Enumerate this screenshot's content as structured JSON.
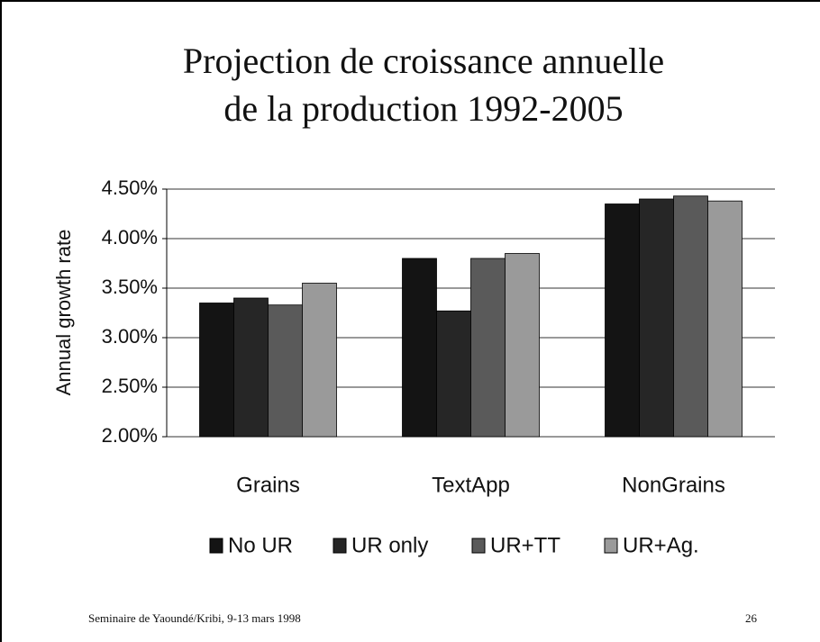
{
  "chart_data": {
    "type": "bar",
    "title": [
      "Projection de croissance annuelle",
      "de la production 1992-2005"
    ],
    "ylabel": "Annual growth rate",
    "categories": [
      "Grains",
      "TextApp",
      "NonGrains"
    ],
    "series": [
      {
        "name": "No UR",
        "color": "#141414",
        "values": [
          3.35,
          3.8,
          4.35
        ]
      },
      {
        "name": "UR only",
        "color": "#262626",
        "values": [
          3.4,
          3.27,
          4.4
        ]
      },
      {
        "name": "UR+TT",
        "color": "#5a5a5a",
        "values": [
          3.33,
          3.8,
          4.43
        ]
      },
      {
        "name": "UR+Ag.",
        "color": "#9a9a9a",
        "values": [
          3.55,
          3.85,
          4.38
        ]
      }
    ],
    "ylim": [
      2,
      4.5
    ],
    "yticks": [
      {
        "value": 2,
        "label": "2.00%"
      },
      {
        "value": 2.5,
        "label": "2.50%"
      },
      {
        "value": 3,
        "label": "3.00%"
      },
      {
        "value": 3.5,
        "label": "3.50%"
      },
      {
        "value": 4,
        "label": "4.00%"
      },
      {
        "value": 4.5,
        "label": "4.50%"
      }
    ],
    "grid": true
  },
  "footer": {
    "text": "Seminaire de Yaoundé/Kribi, 9-13 mars 1998",
    "page": "26"
  }
}
